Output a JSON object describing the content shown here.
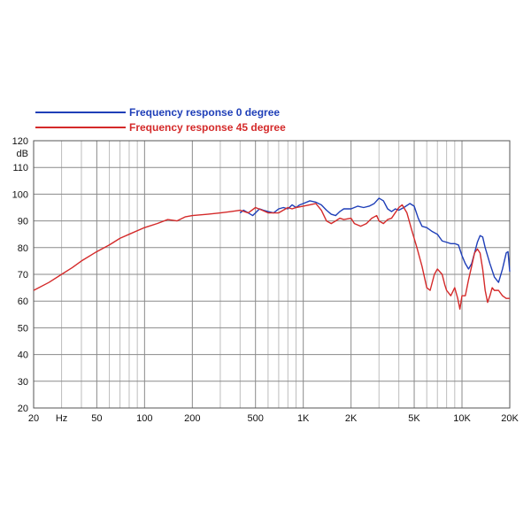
{
  "chart_data": {
    "type": "line",
    "ylabel": "dB",
    "x_scale": "log",
    "xlim": [
      20,
      20000
    ],
    "ylim": [
      20,
      120
    ],
    "grid": true,
    "legend_position": "top-left, above plot",
    "x_ticks": [
      {
        "value": 20,
        "label": "20"
      },
      {
        "value": 30,
        "label": "Hz"
      },
      {
        "value": 50,
        "label": "50"
      },
      {
        "value": 100,
        "label": "100"
      },
      {
        "value": 200,
        "label": "200"
      },
      {
        "value": 500,
        "label": "500"
      },
      {
        "value": 1000,
        "label": "1K"
      },
      {
        "value": 2000,
        "label": "2K"
      },
      {
        "value": 5000,
        "label": "5K"
      },
      {
        "value": 10000,
        "label": "10K"
      },
      {
        "value": 20000,
        "label": "20K"
      }
    ],
    "y_ticks": [
      "20",
      "30",
      "40",
      "50",
      "60",
      "70",
      "80",
      "90",
      "100",
      "110",
      "120"
    ],
    "series": [
      {
        "name": "Frequency response 0 degree",
        "color": "#1f3fb8",
        "points": [
          [
            400,
            93
          ],
          [
            420,
            94
          ],
          [
            450,
            93
          ],
          [
            480,
            92
          ],
          [
            500,
            93
          ],
          [
            530,
            94.5
          ],
          [
            560,
            94
          ],
          [
            600,
            93.5
          ],
          [
            650,
            93
          ],
          [
            700,
            94.5
          ],
          [
            750,
            95
          ],
          [
            800,
            94.5
          ],
          [
            850,
            96
          ],
          [
            900,
            95
          ],
          [
            950,
            96
          ],
          [
            1000,
            96.5
          ],
          [
            1100,
            97.5
          ],
          [
            1200,
            97
          ],
          [
            1300,
            96
          ],
          [
            1400,
            94
          ],
          [
            1500,
            92.5
          ],
          [
            1600,
            92
          ],
          [
            1700,
            93.5
          ],
          [
            1800,
            94.5
          ],
          [
            2000,
            94.5
          ],
          [
            2200,
            95.5
          ],
          [
            2400,
            95
          ],
          [
            2600,
            95.5
          ],
          [
            2800,
            96.5
          ],
          [
            3000,
            98.5
          ],
          [
            3200,
            97.5
          ],
          [
            3400,
            94.5
          ],
          [
            3600,
            93.5
          ],
          [
            3800,
            94.5
          ],
          [
            4000,
            94
          ],
          [
            4300,
            95
          ],
          [
            4700,
            96.5
          ],
          [
            5000,
            95.5
          ],
          [
            5300,
            91
          ],
          [
            5600,
            88
          ],
          [
            6000,
            87.5
          ],
          [
            6500,
            86
          ],
          [
            7000,
            85
          ],
          [
            7500,
            82.5
          ],
          [
            8000,
            82
          ],
          [
            8500,
            81.5
          ],
          [
            9000,
            81.5
          ],
          [
            9500,
            81
          ],
          [
            10000,
            77
          ],
          [
            10500,
            74
          ],
          [
            11000,
            72
          ],
          [
            11500,
            74
          ],
          [
            12000,
            78
          ],
          [
            12500,
            82
          ],
          [
            13000,
            84.5
          ],
          [
            13500,
            84
          ],
          [
            14000,
            80
          ],
          [
            15000,
            74
          ],
          [
            16000,
            69
          ],
          [
            17000,
            67
          ],
          [
            18000,
            72
          ],
          [
            19000,
            78
          ],
          [
            19500,
            78.5
          ],
          [
            20000,
            71
          ]
        ]
      },
      {
        "name": "Frequency response 45 degree",
        "color": "#d42a2a",
        "points": [
          [
            20,
            64
          ],
          [
            25,
            67
          ],
          [
            30,
            70
          ],
          [
            35,
            72.5
          ],
          [
            40,
            75
          ],
          [
            50,
            78.5
          ],
          [
            60,
            81
          ],
          [
            70,
            83.5
          ],
          [
            80,
            85
          ],
          [
            100,
            87.5
          ],
          [
            120,
            89
          ],
          [
            140,
            90.5
          ],
          [
            160,
            90
          ],
          [
            180,
            91.5
          ],
          [
            200,
            92
          ],
          [
            250,
            92.5
          ],
          [
            300,
            93
          ],
          [
            350,
            93.5
          ],
          [
            400,
            94
          ],
          [
            450,
            93
          ],
          [
            500,
            95
          ],
          [
            550,
            94
          ],
          [
            600,
            93
          ],
          [
            700,
            93
          ],
          [
            800,
            95
          ],
          [
            850,
            94.5
          ],
          [
            900,
            95
          ],
          [
            1000,
            95.5
          ],
          [
            1100,
            96
          ],
          [
            1200,
            96.5
          ],
          [
            1300,
            94
          ],
          [
            1400,
            90
          ],
          [
            1500,
            89
          ],
          [
            1600,
            90
          ],
          [
            1700,
            91
          ],
          [
            1800,
            90.5
          ],
          [
            2000,
            91
          ],
          [
            2100,
            89
          ],
          [
            2300,
            88
          ],
          [
            2500,
            89
          ],
          [
            2700,
            91
          ],
          [
            2900,
            92
          ],
          [
            3000,
            90
          ],
          [
            3200,
            89
          ],
          [
            3400,
            90.5
          ],
          [
            3600,
            91
          ],
          [
            4000,
            95
          ],
          [
            4200,
            96
          ],
          [
            4500,
            93
          ],
          [
            4800,
            87
          ],
          [
            5200,
            80
          ],
          [
            5600,
            73
          ],
          [
            6000,
            65
          ],
          [
            6300,
            64
          ],
          [
            6700,
            70
          ],
          [
            7000,
            72
          ],
          [
            7500,
            70
          ],
          [
            7800,
            66
          ],
          [
            8000,
            64
          ],
          [
            8500,
            62
          ],
          [
            9000,
            65
          ],
          [
            9400,
            61
          ],
          [
            9700,
            57
          ],
          [
            10000,
            62
          ],
          [
            10500,
            62
          ],
          [
            11000,
            68
          ],
          [
            11500,
            73
          ],
          [
            12000,
            78
          ],
          [
            12500,
            79.5
          ],
          [
            13000,
            78
          ],
          [
            13500,
            72
          ],
          [
            14000,
            64
          ],
          [
            14500,
            59.5
          ],
          [
            15000,
            62
          ],
          [
            15500,
            65
          ],
          [
            16000,
            64
          ],
          [
            17000,
            64
          ],
          [
            18000,
            62
          ],
          [
            19000,
            61
          ],
          [
            20000,
            61
          ]
        ]
      }
    ]
  }
}
